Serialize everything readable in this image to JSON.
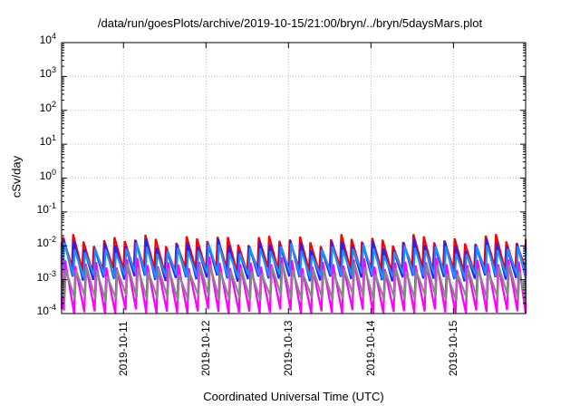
{
  "chart_data": {
    "type": "line",
    "title": "/data/run/goesPlots/archive/2019-10-15/21:00/bryn/../bryn/5daysMars.plot",
    "xlabel": "Coordinated Universal Time (UTC)",
    "ylabel": "cSv/day",
    "y_scale": "log",
    "ylim": [
      0.0001,
      10000
    ],
    "xlim": [
      "2019-10-10T06:00",
      "2019-10-15T21:00"
    ],
    "grid": true,
    "x_ticks": [
      "2019-10-11",
      "2019-10-12",
      "2019-10-13",
      "2019-10-14",
      "2019-10-15"
    ],
    "y_ticks": [
      {
        "base": "10",
        "exp": "-4",
        "value": 0.0001
      },
      {
        "base": "10",
        "exp": "-3",
        "value": 0.001
      },
      {
        "base": "10",
        "exp": "-2",
        "value": 0.01
      },
      {
        "base": "10",
        "exp": "-1",
        "value": 0.1
      },
      {
        "base": "10",
        "exp": "0",
        "value": 1
      },
      {
        "base": "10",
        "exp": "1",
        "value": 10
      },
      {
        "base": "10",
        "exp": "2",
        "value": 100
      },
      {
        "base": "10",
        "exp": "3",
        "value": 1000
      },
      {
        "base": "10",
        "exp": "4",
        "value": 10000
      }
    ],
    "cycle_hours": 3,
    "series": [
      {
        "color": "#ff0000",
        "peak": 0.015,
        "trough": 0.002
      },
      {
        "color": "#2222ff",
        "peak": 0.011,
        "trough": 0.0011
      },
      {
        "color": "#1e90ff",
        "peak": 0.008,
        "trough": 0.0013
      },
      {
        "color": "#ff00ff",
        "peak": 0.003,
        "trough": 0.00011
      },
      {
        "color": "#888888",
        "peak": 0.002,
        "trough": 0.00028
      }
    ]
  }
}
